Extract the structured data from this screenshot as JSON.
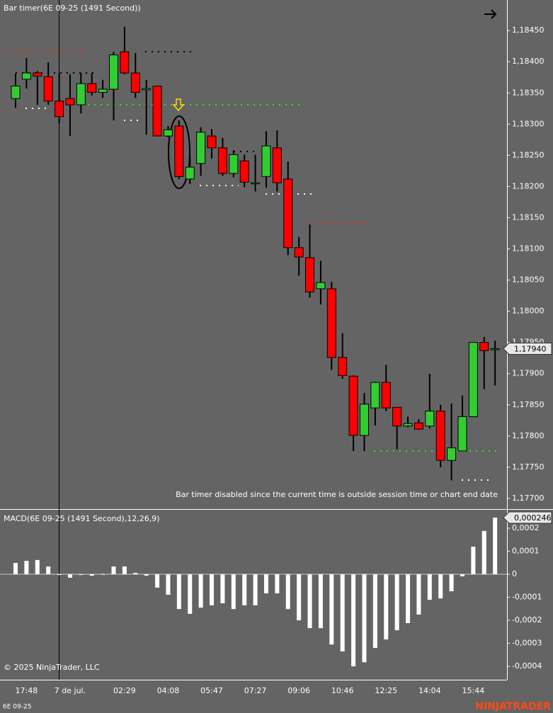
{
  "chart_data": [
    {
      "type": "candlestick",
      "title": "Bar timer(6E 09-25 (1491 Second))",
      "annotation": "Bar timer disabled since the current time is outside session time or chart end date",
      "up_color": "#32cd32",
      "down_color": "#ff0000",
      "open": [
        1.18341,
        1.18372,
        1.18382,
        1.18376,
        1.18337,
        1.18341,
        1.18331,
        1.18365,
        1.18351,
        1.18356,
        1.18416,
        1.18382,
        1.18355,
        1.18361,
        1.18281,
        1.18297,
        1.18212,
        1.18237,
        1.18281,
        1.18262,
        1.18221,
        1.18241,
        1.18206,
        1.18216,
        1.18262,
        1.18212,
        1.18102,
        1.18086,
        1.18036,
        1.18036,
        1.17926,
        1.17896,
        1.17801,
        1.17845,
        1.17886,
        1.17846,
        1.17816,
        1.17821,
        1.17816,
        1.1784,
        1.17761,
        1.17776,
        1.17831,
        1.1795,
        1.1794
      ],
      "high": [
        1.18381,
        1.18406,
        1.18385,
        1.18399,
        1.18382,
        1.1838,
        1.18382,
        1.18382,
        1.18371,
        1.18416,
        1.18456,
        1.18414,
        1.18371,
        1.18361,
        1.18297,
        1.18306,
        1.18248,
        1.18295,
        1.18292,
        1.18278,
        1.18258,
        1.18251,
        1.18251,
        1.18289,
        1.1829,
        1.1824,
        1.18119,
        1.18139,
        1.18081,
        1.18047,
        1.17965,
        1.17897,
        1.17869,
        1.17887,
        1.17914,
        1.17846,
        1.17831,
        1.17827,
        1.179,
        1.1785,
        1.17852,
        1.17865,
        1.1795,
        1.17959,
        1.17953
      ],
      "low": [
        1.18326,
        1.18357,
        1.18331,
        1.18331,
        1.18301,
        1.18281,
        1.18317,
        1.18346,
        1.18342,
        1.18306,
        1.1838,
        1.18342,
        1.18283,
        1.18281,
        1.18279,
        1.18212,
        1.18204,
        1.18217,
        1.18245,
        1.18217,
        1.18215,
        1.18199,
        1.18192,
        1.18198,
        1.18192,
        1.1809,
        1.18057,
        1.18022,
        1.18011,
        1.17906,
        1.17892,
        1.17776,
        1.17776,
        1.17817,
        1.1784,
        1.17779,
        1.17814,
        1.1781,
        1.17812,
        1.1775,
        1.17729,
        1.17776,
        1.17831,
        1.17875,
        1.17881
      ],
      "close": [
        1.18361,
        1.18382,
        1.18377,
        1.18337,
        1.18312,
        1.18331,
        1.18365,
        1.18351,
        1.18356,
        1.18411,
        1.18382,
        1.18351,
        1.18357,
        1.18281,
        1.18291,
        1.18216,
        1.18231,
        1.18287,
        1.18262,
        1.18221,
        1.18251,
        1.18207,
        1.18206,
        1.18265,
        1.18206,
        1.18102,
        1.18087,
        1.18031,
        1.18046,
        1.17926,
        1.17897,
        1.17801,
        1.17851,
        1.17886,
        1.17845,
        1.17816,
        1.1782,
        1.17811,
        1.1784,
        1.17761,
        1.17781,
        1.17831,
        1.1795,
        1.17937,
        1.1794
      ],
      "last_price": {
        "value": 1.1794,
        "label": "1,17940"
      },
      "ylim": [
        1.17684,
        1.18499
      ],
      "yticks": [
        {
          "value": 1.177,
          "label": "1,17700"
        },
        {
          "value": 1.1775,
          "label": "1,17750"
        },
        {
          "value": 1.178,
          "label": "1,17800"
        },
        {
          "value": 1.1785,
          "label": "1,17850"
        },
        {
          "value": 1.179,
          "label": "1,17900"
        },
        {
          "value": 1.1795,
          "label": "1,17950"
        },
        {
          "value": 1.18,
          "label": "1,18000"
        },
        {
          "value": 1.1805,
          "label": "1,18050"
        },
        {
          "value": 1.181,
          "label": "1,18100"
        },
        {
          "value": 1.1815,
          "label": "1,18150"
        },
        {
          "value": 1.182,
          "label": "1,18200"
        },
        {
          "value": 1.1825,
          "label": "1,18250"
        },
        {
          "value": 1.183,
          "label": "1,18300"
        },
        {
          "value": 1.1835,
          "label": "1,18350"
        },
        {
          "value": 1.184,
          "label": "1,18400"
        },
        {
          "value": 1.1845,
          "label": "1,18450"
        }
      ]
    },
    {
      "type": "bar",
      "title": "MACD(6E 09-25 (1491 Second),12,26,9)",
      "annotation": "© 2025 NinjaTrader, LLC",
      "color": "#ffffff",
      "categories": [
        null,
        "17:48",
        null,
        null,
        null,
        "7 de jul.",
        null,
        null,
        null,
        null,
        "02:29",
        null,
        null,
        null,
        "04:08",
        null,
        null,
        null,
        "05:47",
        null,
        null,
        null,
        "07:27",
        null,
        null,
        null,
        "09:06",
        null,
        null,
        null,
        "10:46",
        null,
        null,
        null,
        "12:25",
        null,
        null,
        null,
        "14:04",
        null,
        null,
        null,
        "15:44",
        null,
        null
      ],
      "values": [
        4.9e-05,
        5.8e-05,
        6.2e-05,
        3.4e-05,
        -3e-06,
        -1.5e-05,
        -1e-06,
        -6e-06,
        1e-06,
        3.4e-05,
        3.4e-05,
        6e-06,
        -6e-06,
        -5.8e-05,
        -8.9e-05,
        -0.000151,
        -0.000172,
        -0.000145,
        -0.000135,
        -0.000126,
        -0.000151,
        -0.000135,
        -0.000135,
        -8.3e-05,
        -8.3e-05,
        -0.000151,
        -0.0002,
        -0.000234,
        -0.000234,
        -0.000305,
        -0.000335,
        -0.0004,
        -0.000382,
        -0.00032,
        -0.000283,
        -0.000243,
        -0.000212,
        -0.000175,
        -0.000111,
        -0.000105,
        -7.4e-05,
        -9e-06,
        0.00012,
        0.000188,
        0.000246
      ],
      "last_value": {
        "value": 0.000246,
        "label": "0,000246"
      },
      "ylim": [
        -0.000458,
        0.00028
      ],
      "yticks": [
        {
          "value": 0.0002,
          "label": "0,0002"
        },
        {
          "value": 0.0001,
          "label": "0,0001"
        },
        0,
        {
          "value": -0.0001,
          "label": "-0,0001"
        },
        {
          "value": -0.0002,
          "label": "-0,0002"
        },
        {
          "value": -0.0003,
          "label": "-0,0003"
        },
        {
          "value": -0.0004,
          "label": "-0,0004"
        }
      ]
    }
  ],
  "footer": {
    "instrument": "6E 09-25",
    "logo": "NINJATRADER"
  }
}
